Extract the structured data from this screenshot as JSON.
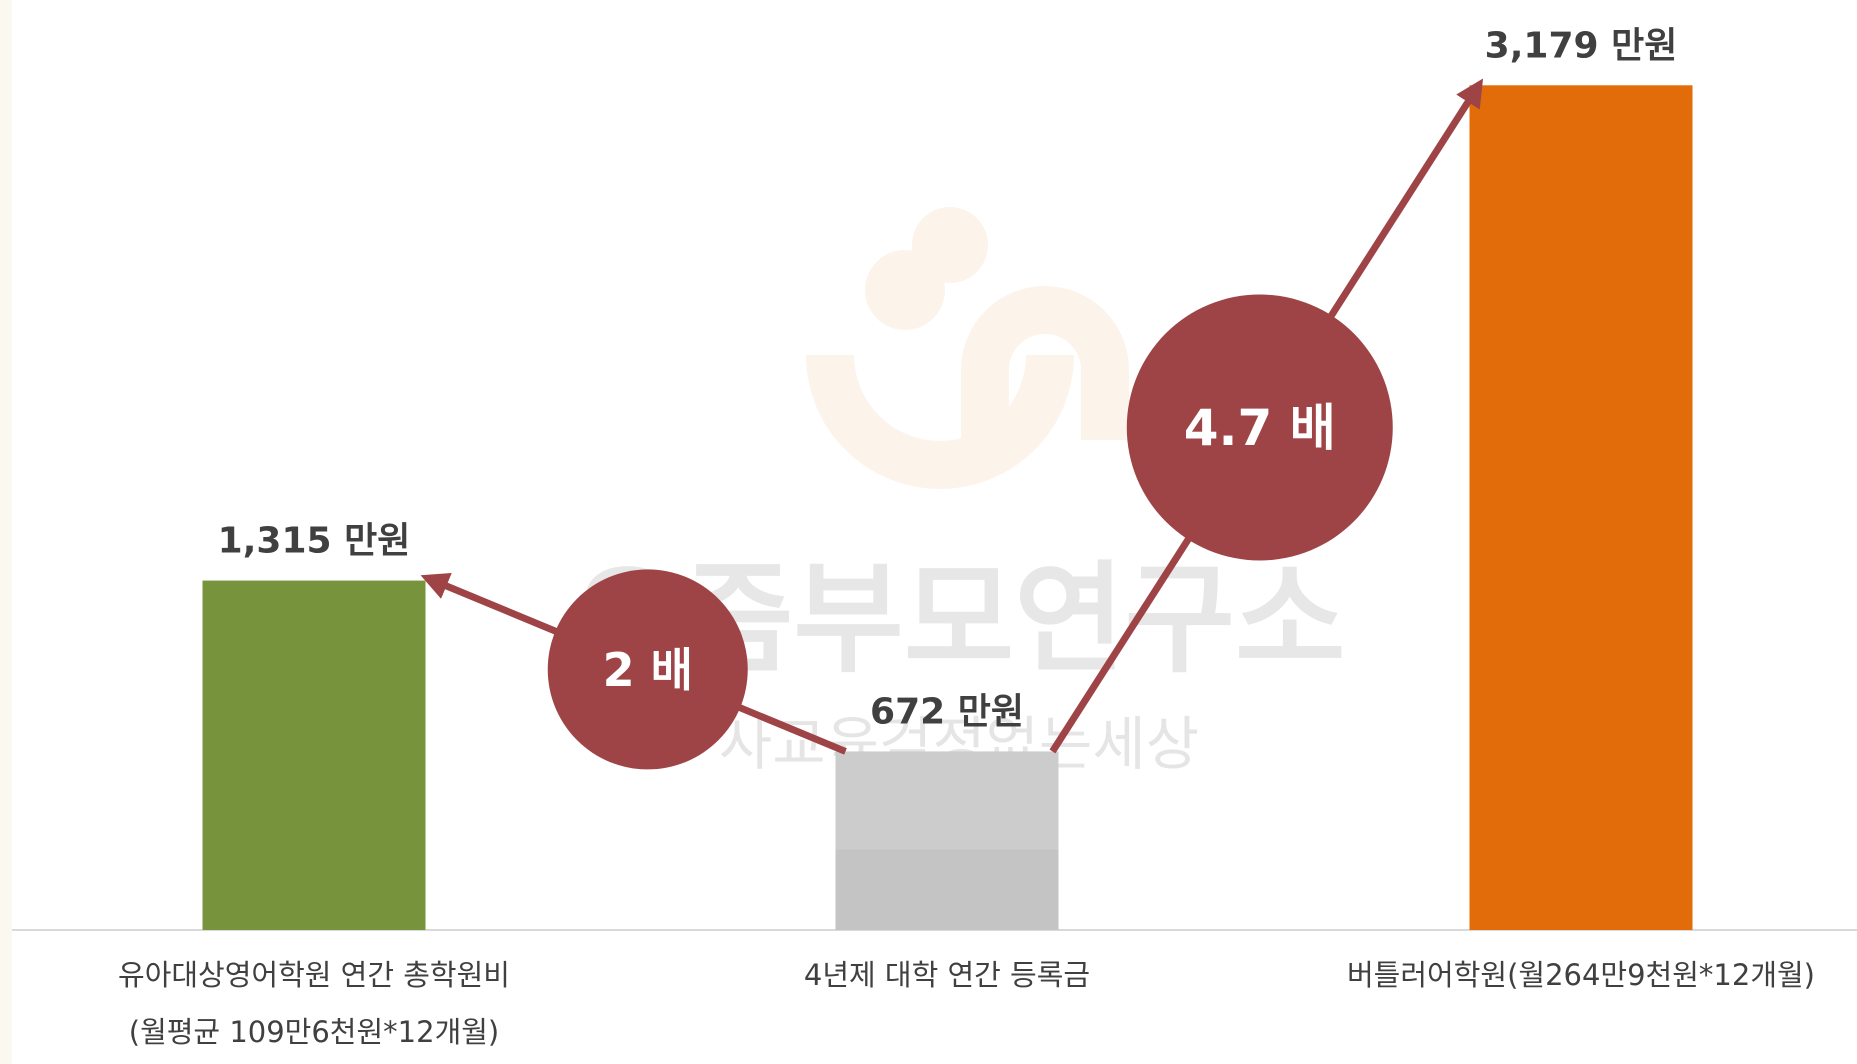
{
  "chart_data": {
    "type": "bar",
    "categories": [
      "유아대상영어학원 연간 총학원비\n(월평균 109만6천원*12개월)",
      "4년제 대학 연간 등록금",
      "버틀러어학원(월264만9천원*12개월)"
    ],
    "values": [
      1315,
      672,
      3179
    ],
    "value_labels": [
      "1,315 만원",
      "672 만원",
      "3,179 만원"
    ],
    "colors": [
      "#77933c",
      "#c4c4c4",
      "#e36c0a"
    ],
    "ylim": [
      0,
      3500
    ],
    "annotations": [
      "2 배",
      "4.7 배"
    ],
    "watermark": {
      "title": "요즘부모연구소",
      "subtitle": "사교육걱정없는세상"
    }
  }
}
